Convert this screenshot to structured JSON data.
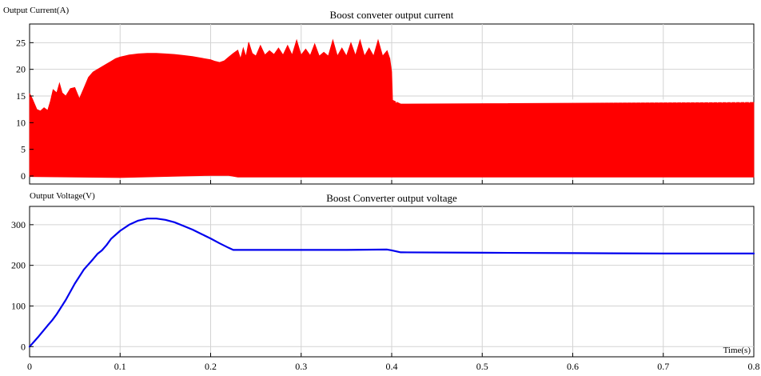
{
  "chart_data": [
    {
      "type": "line",
      "title": "Boost conveter output current",
      "ylabel": "Output Current(A)",
      "xlabel": "",
      "xlim": [
        0,
        0.8
      ],
      "ylim": [
        -1.5,
        28.5
      ],
      "xticks": [
        "0",
        "0.1",
        "0.2",
        "0.3",
        "0.4",
        "0.5",
        "0.6",
        "0.7",
        "0.8"
      ],
      "xtick_values": [
        0,
        0.1,
        0.2,
        0.3,
        0.4,
        0.5,
        0.6,
        0.7,
        0.8
      ],
      "yticks": [
        "0",
        "5",
        "10",
        "15",
        "20",
        "25"
      ],
      "ytick_values": [
        0,
        5,
        10,
        15,
        20,
        25
      ],
      "show_xtick_labels": false,
      "grid": true,
      "series": [
        {
          "color": "#ff0000",
          "fill": true,
          "lower": [
            [
              0,
              -0.1
            ],
            [
              0.1,
              -0.3
            ],
            [
              0.2,
              0.1
            ],
            [
              0.22,
              0.1
            ],
            [
              0.23,
              -0.2
            ],
            [
              0.4,
              -0.2
            ],
            [
              0.8,
              -0.2
            ]
          ],
          "upper": [
            [
              0,
              15.5
            ],
            [
              0.003,
              14.5
            ],
            [
              0.008,
              12.5
            ],
            [
              0.012,
              12.2
            ],
            [
              0.016,
              12.8
            ],
            [
              0.02,
              12.3
            ],
            [
              0.023,
              14.0
            ],
            [
              0.026,
              16.2
            ],
            [
              0.03,
              15.6
            ],
            [
              0.033,
              17.4
            ],
            [
              0.036,
              15.6
            ],
            [
              0.04,
              15.0
            ],
            [
              0.045,
              16.4
            ],
            [
              0.05,
              16.6
            ],
            [
              0.055,
              14.5
            ],
            [
              0.06,
              16.5
            ],
            [
              0.065,
              18.5
            ],
            [
              0.07,
              19.5
            ],
            [
              0.075,
              20.0
            ],
            [
              0.08,
              20.5
            ],
            [
              0.085,
              21.0
            ],
            [
              0.09,
              21.5
            ],
            [
              0.095,
              22.0
            ],
            [
              0.1,
              22.3
            ],
            [
              0.105,
              22.5
            ],
            [
              0.11,
              22.7
            ],
            [
              0.115,
              22.8
            ],
            [
              0.12,
              22.9
            ],
            [
              0.13,
              23.0
            ],
            [
              0.14,
              23.0
            ],
            [
              0.15,
              22.9
            ],
            [
              0.16,
              22.8
            ],
            [
              0.17,
              22.6
            ],
            [
              0.18,
              22.4
            ],
            [
              0.19,
              22.1
            ],
            [
              0.2,
              21.8
            ],
            [
              0.205,
              21.5
            ],
            [
              0.21,
              21.3
            ],
            [
              0.215,
              21.6
            ],
            [
              0.22,
              22.3
            ],
            [
              0.225,
              23.0
            ],
            [
              0.23,
              23.6
            ],
            [
              0.233,
              22.0
            ],
            [
              0.236,
              24.0
            ],
            [
              0.239,
              22.4
            ],
            [
              0.242,
              25.1
            ],
            [
              0.246,
              23.0
            ],
            [
              0.25,
              22.5
            ],
            [
              0.255,
              24.5
            ],
            [
              0.26,
              22.7
            ],
            [
              0.265,
              23.5
            ],
            [
              0.27,
              22.8
            ],
            [
              0.275,
              24.0
            ],
            [
              0.28,
              22.7
            ],
            [
              0.285,
              24.5
            ],
            [
              0.29,
              22.7
            ],
            [
              0.295,
              25.5
            ],
            [
              0.3,
              22.7
            ],
            [
              0.305,
              23.8
            ],
            [
              0.31,
              22.6
            ],
            [
              0.315,
              24.8
            ],
            [
              0.32,
              22.5
            ],
            [
              0.325,
              23.2
            ],
            [
              0.33,
              22.5
            ],
            [
              0.335,
              25.5
            ],
            [
              0.34,
              22.5
            ],
            [
              0.345,
              24.0
            ],
            [
              0.35,
              22.5
            ],
            [
              0.355,
              25.0
            ],
            [
              0.36,
              22.6
            ],
            [
              0.365,
              25.5
            ],
            [
              0.37,
              22.5
            ],
            [
              0.375,
              24.0
            ],
            [
              0.38,
              22.5
            ],
            [
              0.385,
              25.5
            ],
            [
              0.39,
              22.5
            ],
            [
              0.395,
              23.5
            ],
            [
              0.398,
              22.0
            ],
            [
              0.4,
              19.5
            ],
            [
              0.401,
              14.2
            ],
            [
              0.41,
              13.5
            ],
            [
              0.8,
              13.8
            ]
          ]
        }
      ]
    },
    {
      "type": "line",
      "title": "Boost Converter output voltage",
      "ylabel": "Output Voltage(V)",
      "xlabel": "Time(s)",
      "xlim": [
        0,
        0.8
      ],
      "ylim": [
        -25,
        345
      ],
      "xticks": [
        "0",
        "0.1",
        "0.2",
        "0.3",
        "0.4",
        "0.5",
        "0.6",
        "0.7",
        "0.8"
      ],
      "xtick_values": [
        0,
        0.1,
        0.2,
        0.3,
        0.4,
        0.5,
        0.6,
        0.7,
        0.8
      ],
      "yticks": [
        "0",
        "100",
        "200",
        "300"
      ],
      "ytick_values": [
        0,
        100,
        200,
        300
      ],
      "show_xtick_labels": true,
      "grid": true,
      "series": [
        {
          "color": "#0000ee",
          "fill": false,
          "points": [
            [
              0,
              0
            ],
            [
              0.01,
              25
            ],
            [
              0.02,
              52
            ],
            [
              0.025,
              65
            ],
            [
              0.03,
              80
            ],
            [
              0.04,
              115
            ],
            [
              0.05,
              155
            ],
            [
              0.06,
              190
            ],
            [
              0.07,
              215
            ],
            [
              0.075,
              228
            ],
            [
              0.08,
              237
            ],
            [
              0.085,
              250
            ],
            [
              0.09,
              265
            ],
            [
              0.1,
              285
            ],
            [
              0.11,
              300
            ],
            [
              0.12,
              310
            ],
            [
              0.13,
              315
            ],
            [
              0.14,
              315
            ],
            [
              0.15,
              312
            ],
            [
              0.16,
              306
            ],
            [
              0.17,
              297
            ],
            [
              0.18,
              288
            ],
            [
              0.19,
              277
            ],
            [
              0.2,
              266
            ],
            [
              0.21,
              254
            ],
            [
              0.22,
              243
            ],
            [
              0.225,
              238
            ],
            [
              0.23,
              238
            ],
            [
              0.3,
              238
            ],
            [
              0.35,
              238
            ],
            [
              0.395,
              239
            ],
            [
              0.4,
              237
            ],
            [
              0.41,
              232
            ],
            [
              0.5,
              231
            ],
            [
              0.6,
              230
            ],
            [
              0.7,
              229
            ],
            [
              0.8,
              229
            ]
          ]
        }
      ]
    }
  ]
}
